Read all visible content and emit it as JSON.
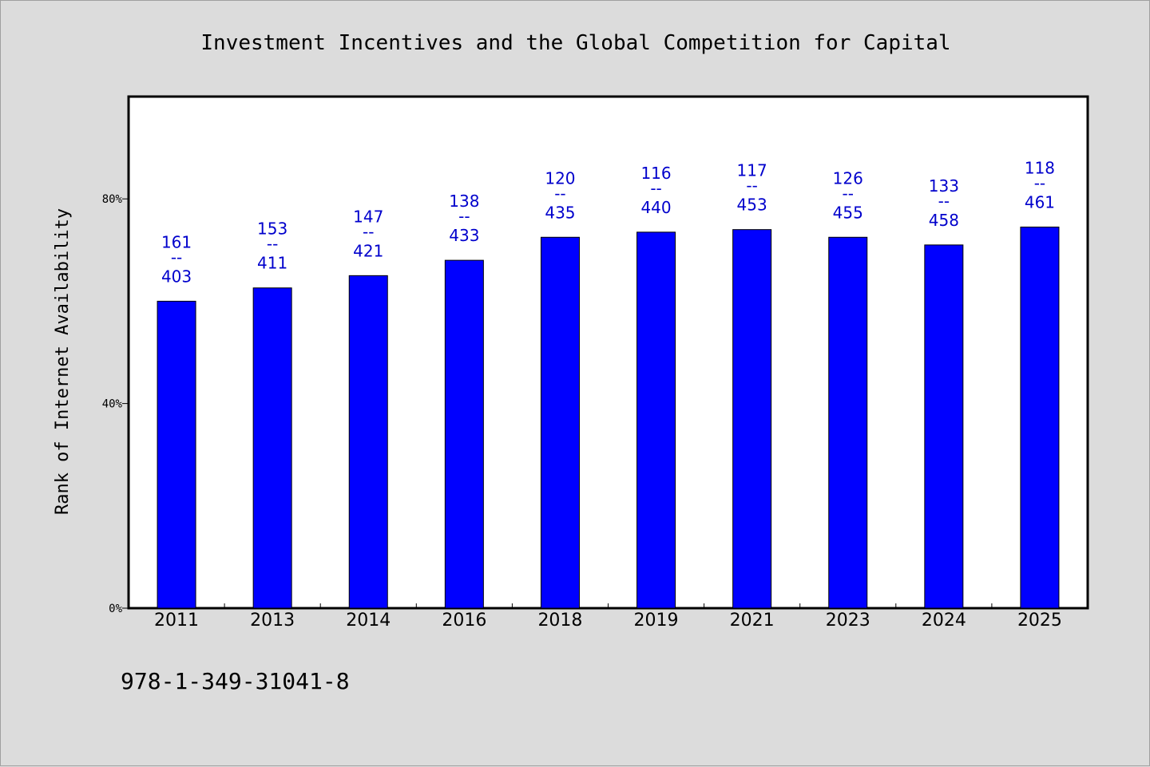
{
  "chart_data": {
    "type": "bar",
    "title": "Investment Incentives and the Global Competition for Capital",
    "ylabel": "Rank of Internet Availability",
    "xlabel": "",
    "categories": [
      "2011",
      "2013",
      "2014",
      "2016",
      "2018",
      "2019",
      "2021",
      "2023",
      "2024",
      "2025"
    ],
    "values": [
      0.6,
      0.626,
      0.65,
      0.68,
      0.725,
      0.735,
      0.74,
      0.725,
      0.71,
      0.745
    ],
    "data_labels": [
      {
        "rank": "161",
        "sep": "--",
        "total": "403"
      },
      {
        "rank": "153",
        "sep": "--",
        "total": "411"
      },
      {
        "rank": "147",
        "sep": "--",
        "total": "421"
      },
      {
        "rank": "138",
        "sep": "--",
        "total": "433"
      },
      {
        "rank": "120",
        "sep": "--",
        "total": "435"
      },
      {
        "rank": "116",
        "sep": "--",
        "total": "440"
      },
      {
        "rank": "117",
        "sep": "--",
        "total": "453"
      },
      {
        "rank": "126",
        "sep": "--",
        "total": "455"
      },
      {
        "rank": "133",
        "sep": "--",
        "total": "458"
      },
      {
        "rank": "118",
        "sep": "--",
        "total": "461"
      }
    ],
    "yticks": [
      {
        "value": 0,
        "label": "0%"
      },
      {
        "value": 0.4,
        "label": "40%"
      },
      {
        "value": 0.8,
        "label": "80%"
      }
    ],
    "ylim": [
      0,
      1.0
    ],
    "grid": false,
    "legend": "none",
    "bar_color": "#0000ff",
    "label_color": "#0000cc"
  },
  "footer": {
    "isbn": "978-1-349-31041-8"
  }
}
